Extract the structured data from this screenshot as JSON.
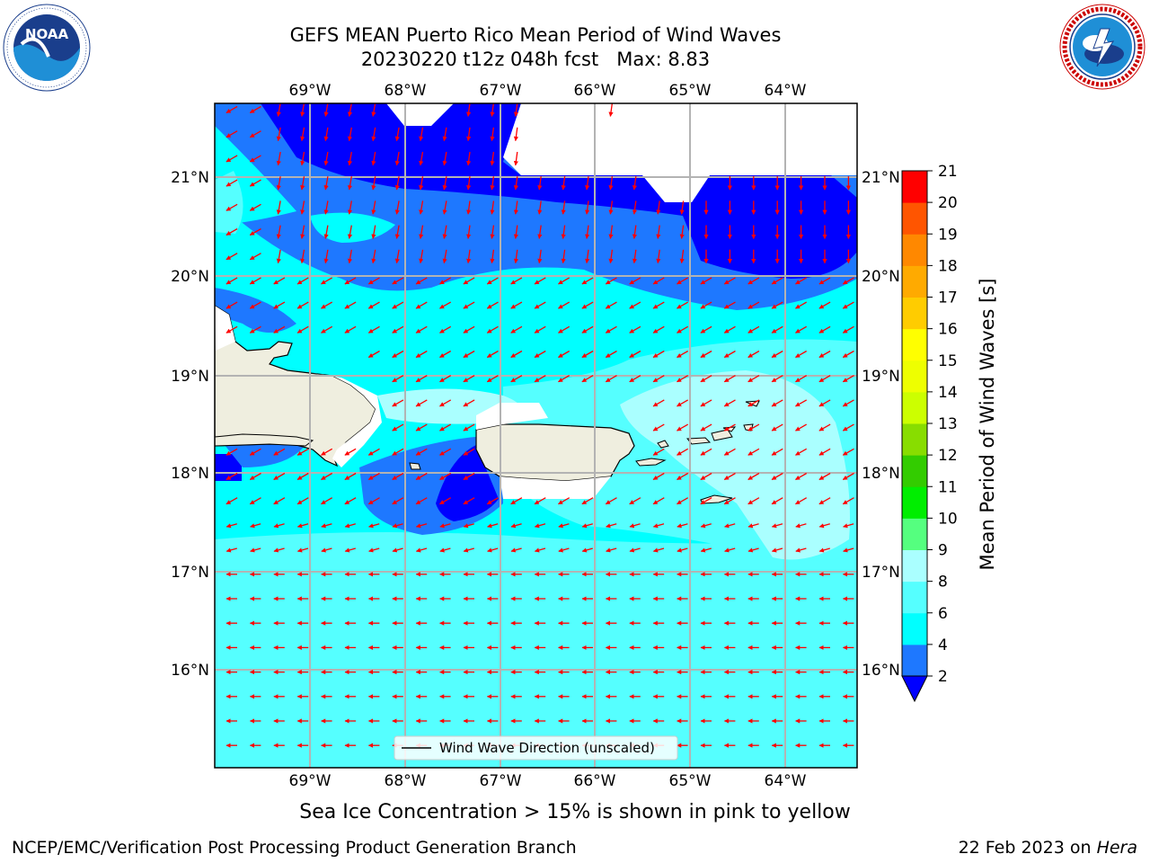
{
  "header": {
    "title_line1": "GEFS MEAN Puerto Rico Mean Period of Wind Waves",
    "title_line2": "20230220 t12z 048h fcst   Max: 8.83"
  },
  "logos": {
    "left": {
      "name": "noaa-logo",
      "text": "NOAA",
      "ring_text": "NATIONAL OCEANIC AND ATMOSPHERIC ADMINISTRATION · U.S. DEPARTMENT OF COMMERCE"
    },
    "right": {
      "name": "nws-logo",
      "ring_text": "NATIONAL WEATHER SERVICE"
    }
  },
  "map": {
    "lon_labels": [
      "69°W",
      "68°W",
      "67°W",
      "66°W",
      "65°W",
      "64°W"
    ],
    "lat_labels": [
      "21°N",
      "20°N",
      "19°N",
      "18°N",
      "17°N",
      "16°N"
    ],
    "legend_label": "Wind Wave Direction (unscaled)",
    "colors": {
      "land": "#efeedf",
      "arrow": "#ff0000",
      "grid": "#b3b3b3",
      "period_2_4": "#0000ff",
      "period_4_6": "#1e78ff",
      "period_6_8": "#00ffff",
      "period_8_9": "#55ffff",
      "period_9_10": "#aaffff"
    }
  },
  "colorbar": {
    "label": "Mean Period of Wind Waves [s]",
    "ticks": [
      "2",
      "4",
      "6",
      "8",
      "9",
      "10",
      "11",
      "12",
      "13",
      "14",
      "15",
      "16",
      "17",
      "18",
      "19",
      "20",
      "21"
    ],
    "colors": [
      "#1e78ff",
      "#00ffff",
      "#55ffff",
      "#aaffff",
      "#55ff7f",
      "#00ee00",
      "#33cc00",
      "#88dd00",
      "#ccff00",
      "#eeff00",
      "#ffff00",
      "#ffcc00",
      "#ffaa00",
      "#ff8800",
      "#ff5500",
      "#ff0000"
    ],
    "under_color": "#0000ff"
  },
  "footer": {
    "note": "Sea Ice Concentration > 15% is shown in pink to yellow",
    "left": "NCEP/EMC/Verification Post Processing Product Generation Branch",
    "right_date": "22 Feb 2023 on ",
    "right_host": "Hera"
  }
}
